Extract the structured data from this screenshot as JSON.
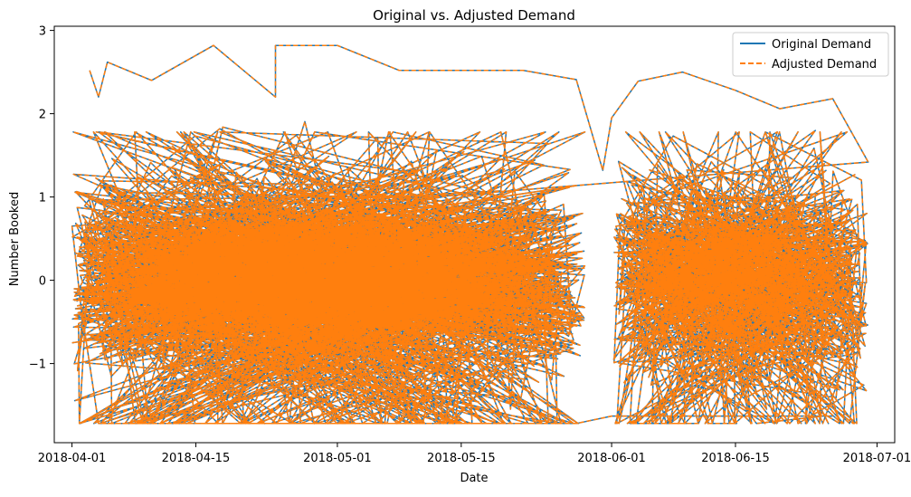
{
  "chart_data": {
    "type": "line",
    "title": "Original vs. Adjusted Demand",
    "xlabel": "Date",
    "ylabel": "Number Booked",
    "x_range": [
      "2018-03-30",
      "2018-07-03"
    ],
    "ylim": [
      -1.95,
      3.05
    ],
    "x_ticks": [
      "2018-04-01",
      "2018-04-15",
      "2018-05-01",
      "2018-05-15",
      "2018-06-01",
      "2018-06-15",
      "2018-07-01"
    ],
    "y_ticks": [
      -1,
      0,
      1,
      2,
      3
    ],
    "y_tick_labels": [
      "−1",
      "0",
      "1",
      "2",
      "3"
    ],
    "grid": false,
    "legend_position": "upper right",
    "series": [
      {
        "name": "Original Demand",
        "style": "solid",
        "color": "#1f77b4",
        "date_segments": [
          [
            "2018-04-01",
            "2018-05-29"
          ],
          [
            "2018-06-01",
            "2018-06-30"
          ]
        ],
        "value_range": [
          -1.72,
          2.82
        ],
        "points_sample": [
          [
            "2018-04-03",
            2.52
          ],
          [
            "2018-04-04",
            2.2
          ],
          [
            "2018-04-05",
            2.62
          ],
          [
            "2018-04-10",
            2.4
          ],
          [
            "2018-04-17",
            2.82
          ],
          [
            "2018-04-24",
            2.2
          ],
          [
            "2018-04-24",
            2.82
          ],
          [
            "2018-05-01",
            2.82
          ],
          [
            "2018-05-08",
            2.52
          ],
          [
            "2018-05-22",
            2.52
          ],
          [
            "2018-05-28",
            2.41
          ],
          [
            "2018-05-31",
            1.32
          ],
          [
            "2018-06-01",
            1.95
          ],
          [
            "2018-06-04",
            2.39
          ],
          [
            "2018-06-09",
            2.5
          ],
          [
            "2018-06-15",
            2.28
          ],
          [
            "2018-06-20",
            2.06
          ],
          [
            "2018-06-26",
            2.18
          ],
          [
            "2018-06-30",
            1.42
          ],
          [
            "2018-04-01",
            0.65
          ],
          [
            "2018-04-02",
            -0.3
          ],
          [
            "2018-04-04",
            -1.72
          ],
          [
            "2018-04-20",
            -1.72
          ],
          [
            "2018-05-10",
            -1.72
          ],
          [
            "2018-05-28",
            -1.72
          ],
          [
            "2018-06-01",
            -1.63
          ],
          [
            "2018-06-15",
            -1.63
          ],
          [
            "2018-06-26",
            -1.63
          ]
        ]
      },
      {
        "name": "Adjusted Demand",
        "style": "dashed",
        "color": "#ff7f0e",
        "date_segments": [
          [
            "2018-04-01",
            "2018-05-29"
          ],
          [
            "2018-06-01",
            "2018-06-30"
          ]
        ],
        "value_range": [
          -1.72,
          2.82
        ],
        "note_same_as": "Original Demand"
      }
    ]
  }
}
